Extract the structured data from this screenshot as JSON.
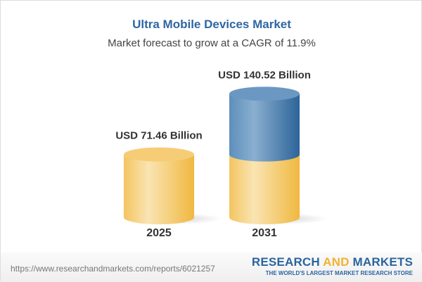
{
  "header": {
    "title": "Ultra Mobile Devices Market",
    "subtitle": "Market forecast to grow at a CAGR of 11.9%"
  },
  "chart_data": {
    "type": "bar",
    "style": "3d-cylinder",
    "categories": [
      "2025",
      "2031"
    ],
    "values": [
      71.46,
      140.52
    ],
    "value_labels": [
      "USD 71.46 Billion",
      "USD 140.52 Billion"
    ],
    "title": "Ultra Mobile Devices Market",
    "subtitle": "Market forecast to grow at a CAGR of 11.9%",
    "unit": "USD Billion",
    "grid": false,
    "colors": {
      "base": "#f3c462",
      "growth": "#3f78ab"
    }
  },
  "footer": {
    "url": "https://www.researchandmarkets.com/reports/6021257",
    "logo_part1": "RESEARCH ",
    "logo_part2": "AND",
    "logo_part3": " MARKETS",
    "logo_tagline": "THE WORLD'S LARGEST MARKET RESEARCH STORE"
  }
}
